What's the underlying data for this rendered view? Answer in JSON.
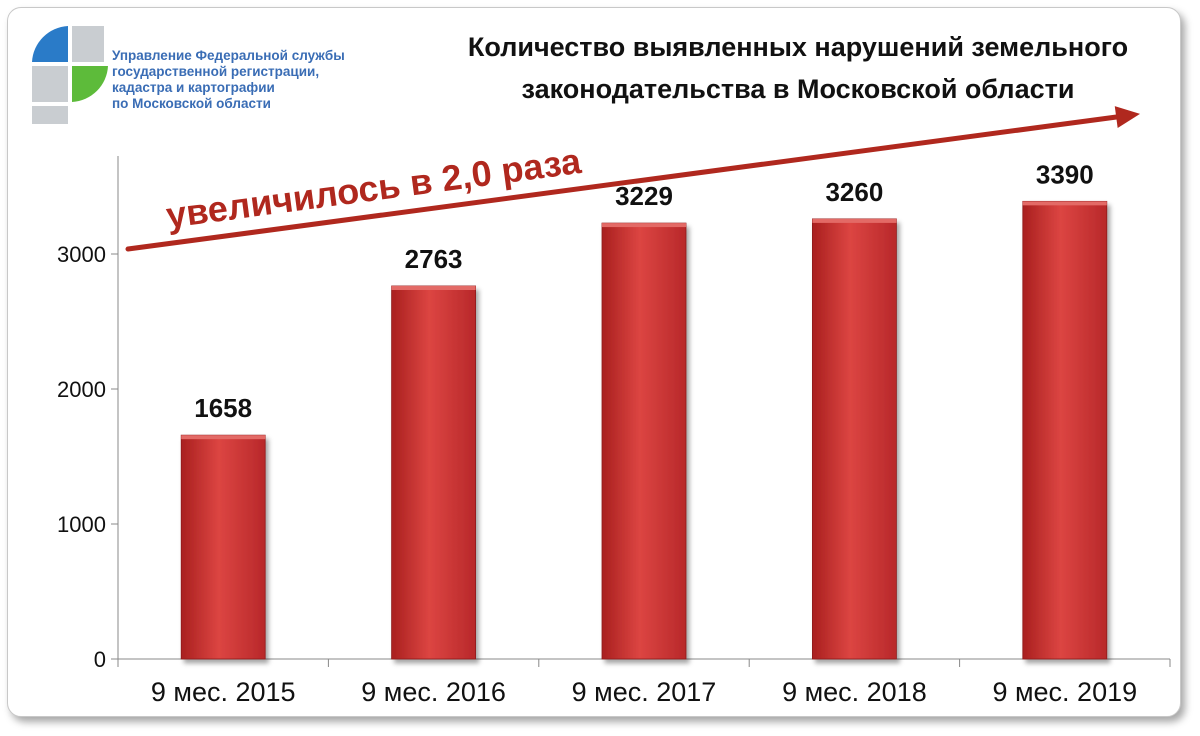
{
  "organization": {
    "lines": [
      "Управление Федеральной службы",
      "государственной регистрации,",
      "кадастра и картографии",
      "по Московской области"
    ]
  },
  "colors": {
    "bar": "#d23a37",
    "bar_dark": "#a9201f",
    "arrow": "#b0281e",
    "org_text": "#3a6db5",
    "logo_blue": "#2a7bc8",
    "logo_green": "#5dbb3a",
    "logo_gray": "#c9cdd1"
  },
  "chart_data": {
    "type": "bar",
    "title": [
      "Количество выявленных нарушений земельного",
      "законодательства в Московской области"
    ],
    "categories": [
      "9 мес. 2015",
      "9 мес. 2016",
      "9 мес. 2017",
      "9 мес. 2018",
      "9 мес. 2019"
    ],
    "values": [
      1658,
      2763,
      3229,
      3260,
      3390
    ],
    "data_labels": [
      "1658",
      "2763",
      "3229",
      "3260",
      "3390"
    ],
    "yticks": [
      0,
      1000,
      2000,
      3000
    ],
    "ylim": [
      0,
      3750
    ],
    "grid": false,
    "legend": "none",
    "annotation": "увеличилось в 2,0 раза"
  }
}
